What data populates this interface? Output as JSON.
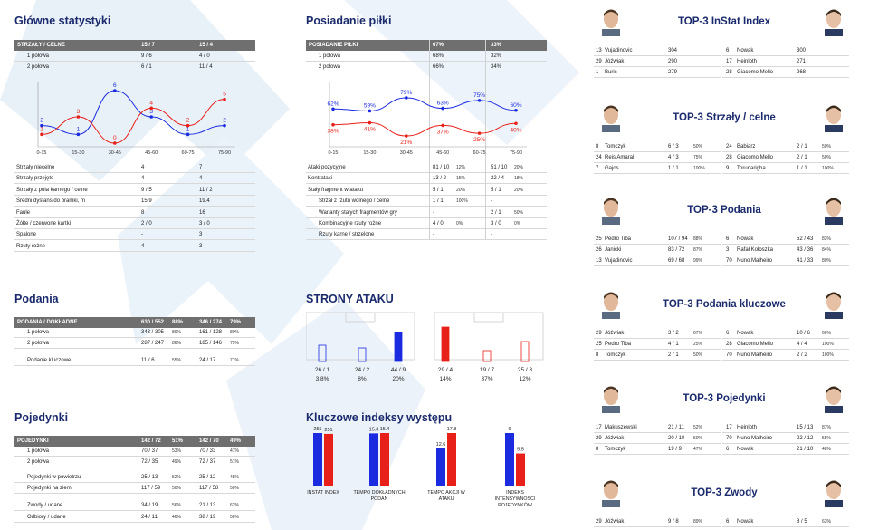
{
  "main_stats": {
    "title": "Główne statystyki",
    "header": [
      "STRZAŁY / CELNE",
      "15 / 7",
      "15 / 4"
    ],
    "rows": [
      [
        "1 połowa",
        "9 / 6",
        "4 / 0"
      ],
      [
        "2 połowa",
        "6 / 1",
        "11 / 4"
      ]
    ],
    "chart": {
      "x": [
        "0-15",
        "15-30",
        "30-45",
        "45-60",
        "60-75",
        "75-90"
      ],
      "blue": [
        2,
        1,
        6,
        3,
        1,
        2
      ],
      "red": [
        1,
        3,
        0,
        4,
        2,
        5
      ],
      "blue_labels": [
        "2",
        "1",
        "6",
        "3",
        "1",
        "2"
      ],
      "red_labels": [
        "1",
        "3",
        "0",
        "4",
        "2",
        "5"
      ]
    },
    "rows2": [
      [
        "Strzały niecelne",
        "4",
        "7"
      ],
      [
        "Strzały przejęte",
        "4",
        "4"
      ],
      [
        "Strzały z pola karnego / celne",
        "9 / 5",
        "11 / 2"
      ],
      [
        "Średni dystans do bramki, m",
        "15.9",
        "19.4"
      ],
      [
        "Faule",
        "8",
        "16"
      ],
      [
        "Żółte / czerwone kartki",
        "2 / 0",
        "3 / 0"
      ],
      [
        "Spalone",
        "-",
        "3"
      ],
      [
        "Rzuty rożne",
        "4",
        "3"
      ]
    ]
  },
  "possession": {
    "title": "Posiadanie piłki",
    "header": [
      "POSIADANIE PIŁKI",
      "67%",
      "33%"
    ],
    "rows": [
      [
        "1 połowa",
        "68%",
        "32%"
      ],
      [
        "2 połowa",
        "66%",
        "34%"
      ]
    ],
    "chart": {
      "x": [
        "0-15",
        "15-30",
        "30-45",
        "45-60",
        "60-75",
        "75-90"
      ],
      "blue": [
        62,
        59,
        79,
        63,
        75,
        60
      ],
      "red": [
        38,
        41,
        21,
        37,
        25,
        40
      ],
      "blue_labels": [
        "62%",
        "59%",
        "79%",
        "63%",
        "75%",
        "60%"
      ],
      "red_labels": [
        "38%",
        "41%",
        "21%",
        "37%",
        "25%",
        "40%"
      ]
    },
    "rows2": [
      [
        "Ataki pozycyjne",
        "81 / 10",
        "12%",
        "51 / 10",
        "20%"
      ],
      [
        "Kontrataki",
        "13 / 2",
        "15%",
        "22 / 4",
        "18%"
      ],
      [
        "Stały fragment w ataku",
        "5 / 1",
        "20%",
        "5 / 1",
        "20%"
      ],
      [
        "Strzał z rzutu wolnego / celne",
        "1 / 1",
        "100%",
        "-",
        ""
      ],
      [
        "Warianty stałych fragmentów gry",
        "-",
        "",
        "2 / 1",
        "50%"
      ],
      [
        "Kombinacyjne rzuty rożne",
        "4 / 0",
        "0%",
        "3 / 0",
        "0%"
      ],
      [
        "Rzuty karne / strzelone",
        "-",
        "",
        "-",
        ""
      ]
    ]
  },
  "passes": {
    "title": "Podania",
    "header": [
      "PODANIA / DOKŁADNE",
      "630 / 552",
      "88%",
      "346 / 274",
      "79%"
    ],
    "rows": [
      [
        "1 połowa",
        "343 / 305",
        "89%",
        "161 / 128",
        "80%"
      ],
      [
        "2 połowa",
        "287 / 247",
        "86%",
        "185 / 146",
        "79%"
      ],
      [
        "Podanie kluczowe",
        "11 / 6",
        "55%",
        "24 / 17",
        "71%"
      ]
    ]
  },
  "duels": {
    "title": "Pojedynki",
    "header": [
      "POJEDYNKI",
      "142 / 72",
      "51%",
      "142 / 70",
      "49%"
    ],
    "rows": [
      [
        "1 połowa",
        "70 / 37",
        "53%",
        "70 / 33",
        "47%"
      ],
      [
        "2 połowa",
        "72 / 35",
        "49%",
        "72 / 37",
        "51%"
      ],
      [
        "Pojedynki w powietrzu",
        "25 / 13",
        "52%",
        "25 / 12",
        "48%"
      ],
      [
        "Pojedynki na ziemi",
        "117 / 59",
        "50%",
        "117 / 58",
        "50%"
      ],
      [
        "Zwody / udane",
        "34 / 19",
        "56%",
        "21 / 13",
        "62%"
      ],
      [
        "Odbiory / udane",
        "24 / 11",
        "46%",
        "38 / 19",
        "50%"
      ]
    ]
  },
  "attack": {
    "title": "STRONY ATAKU",
    "blue": [
      {
        "a": "26 / 1",
        "b": "3.8%"
      },
      {
        "a": "24 / 2",
        "b": "8%"
      },
      {
        "a": "44 / 9",
        "b": "20%"
      }
    ],
    "red": [
      {
        "a": "29 / 4",
        "b": "14%"
      },
      {
        "a": "19 / 7",
        "b": "37%"
      },
      {
        "a": "25 / 3",
        "b": "12%"
      }
    ]
  },
  "key_idx": {
    "title": "Kluczowe indeksy występu",
    "items": [
      {
        "label": "INSTAT INDEX",
        "blue": 255,
        "red": 251,
        "bl": "255",
        "rl": "251"
      },
      {
        "label": "TEMPO DOKŁADNYCH PODAŃ",
        "blue": 15.3,
        "red": 15.4,
        "bl": "15.3",
        "rl": "15.4"
      },
      {
        "label": "TEMPO AKCJI W ATAKU",
        "blue": 12.6,
        "red": 17.8,
        "bl": "12.6",
        "rl": "17.8"
      },
      {
        "label": "INDEKS INTENSYWNOŚCI POJEDYNKÓW",
        "blue": 9,
        "red": 5.5,
        "bl": "9",
        "rl": "5.5"
      }
    ]
  },
  "top": [
    {
      "title": "TOP-3 InStat Index",
      "left": [
        [
          "13",
          "Vujadinovic",
          "304",
          ""
        ],
        [
          "29",
          "Jóźwiak",
          "290",
          ""
        ],
        [
          "1",
          "Buric",
          "279",
          ""
        ]
      ],
      "right": [
        [
          "6",
          "Nowak",
          "300",
          ""
        ],
        [
          "17",
          "Heinloth",
          "271",
          ""
        ],
        [
          "28",
          "Giacomo Mello",
          "268",
          ""
        ]
      ]
    },
    {
      "title": "TOP-3 Strzały / celne",
      "left": [
        [
          "8",
          "Tomczyk",
          "6 / 3",
          "50%"
        ],
        [
          "24",
          "Reis Amaral",
          "4 / 3",
          "75%"
        ],
        [
          "7",
          "Gajos",
          "1 / 1",
          "100%"
        ]
      ],
      "right": [
        [
          "24",
          "Babiarz",
          "2 / 1",
          "50%"
        ],
        [
          "28",
          "Giacomo Mello",
          "2 / 1",
          "50%"
        ],
        [
          "9",
          "Torunarigha",
          "1 / 1",
          "100%"
        ]
      ]
    },
    {
      "title": "TOP-3 Podania",
      "left": [
        [
          "25",
          "Pedro Tiba",
          "107 / 94",
          "88%"
        ],
        [
          "26",
          "Janicki",
          "83 / 72",
          "87%"
        ],
        [
          "13",
          "Vujadinovic",
          "69 / 68",
          "99%"
        ]
      ],
      "right": [
        [
          "6",
          "Nowak",
          "52 / 43",
          "83%"
        ],
        [
          "3",
          "Rafał Kołoszka",
          "43 / 36",
          "84%"
        ],
        [
          "70",
          "Nuno Malheiro",
          "41 / 33",
          "80%"
        ]
      ]
    },
    {
      "title": "TOP-3 Podania kluczowe",
      "left": [
        [
          "29",
          "Jóźwiak",
          "3 / 2",
          "67%"
        ],
        [
          "25",
          "Pedro Tiba",
          "4 / 1",
          "25%"
        ],
        [
          "8",
          "Tomczyk",
          "2 / 1",
          "50%"
        ]
      ],
      "right": [
        [
          "6",
          "Nowak",
          "10 / 6",
          "60%"
        ],
        [
          "28",
          "Giacomo Mello",
          "4 / 4",
          "100%"
        ],
        [
          "70",
          "Nuno Malheiro",
          "2 / 2",
          "100%"
        ]
      ]
    },
    {
      "title": "TOP-3 Pojedynki",
      "left": [
        [
          "17",
          "Makuszewski",
          "21 / 11",
          "52%"
        ],
        [
          "29",
          "Jóźwiak",
          "20 / 10",
          "50%"
        ],
        [
          "8",
          "Tomczyk",
          "19 / 9",
          "47%"
        ]
      ],
      "right": [
        [
          "17",
          "Heinloth",
          "15 / 13",
          "87%"
        ],
        [
          "70",
          "Nuno Malheiro",
          "22 / 12",
          "55%"
        ],
        [
          "6",
          "Nowak",
          "21 / 10",
          "48%"
        ]
      ]
    },
    {
      "title": "TOP-3 Zwody",
      "left": [
        [
          "29",
          "Jóźwiak",
          "9 / 8",
          "89%"
        ]
      ],
      "right": [
        [
          "6",
          "Nowak",
          "8 / 5",
          "63%"
        ]
      ]
    }
  ],
  "colors": {
    "blue": "#1a2be0",
    "red": "#e8201a",
    "title": "#1a2a6c"
  }
}
